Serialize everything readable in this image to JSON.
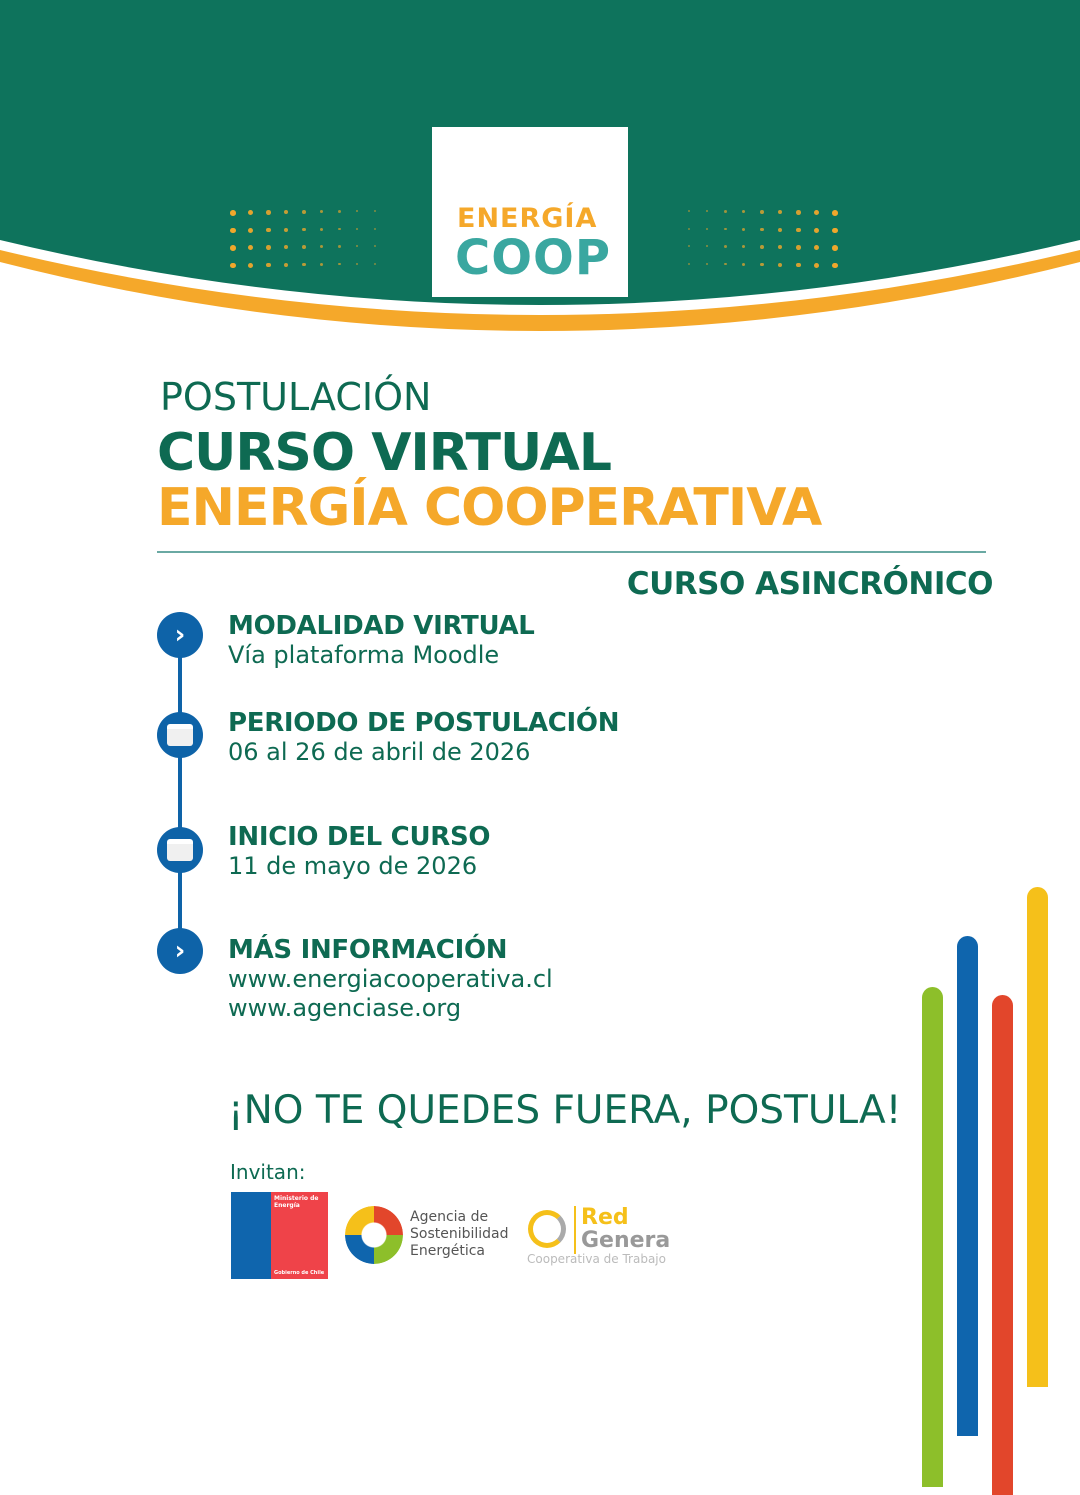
{
  "logo": {
    "line1": "ENERGÍA",
    "line2": "COOP"
  },
  "heading": {
    "pre": "POSTULACIÓN",
    "title1": "CURSO VIRTUAL",
    "title2": "ENERGÍA COOPERATIVA",
    "tag": "CURSO ASINCRÓNICO"
  },
  "items": [
    {
      "icon": "chevron-right-icon",
      "title": "MODALIDAD VIRTUAL",
      "lines": [
        "Vía plataforma Moodle"
      ]
    },
    {
      "icon": "calendar-icon",
      "title": "PERIODO DE POSTULACIÓN",
      "lines": [
        "06 al 26 de abril de 2026"
      ]
    },
    {
      "icon": "calendar-icon",
      "title": "INICIO DEL CURSO",
      "lines": [
        "11 de mayo de 2026"
      ]
    },
    {
      "icon": "chevron-right-icon",
      "title": "MÁS INFORMACIÓN",
      "lines": [
        "www.energiacooperativa.cl",
        "www.agenciase.org"
      ]
    }
  ],
  "cta": "¡NO TE QUEDES FUERA, POSTULA!",
  "invite": {
    "label": "Invitan:",
    "ministerio": {
      "l1": "Ministerio de",
      "l2": "Energía",
      "l3": "Gobierno de Chile"
    },
    "agencia": {
      "l1": "Agencia de",
      "l2": "Sostenibilidad",
      "l3": "Energética"
    },
    "red": {
      "l1": "Red",
      "l2": "Genera",
      "l3": "Cooperativa de Trabajo"
    }
  },
  "colors": {
    "green": "#0e735c",
    "orange": "#f5a82a",
    "blue": "#0e63a8",
    "bars": [
      "#8dbf2a",
      "#0f65ad",
      "#e2462b",
      "#f5c01a"
    ]
  }
}
